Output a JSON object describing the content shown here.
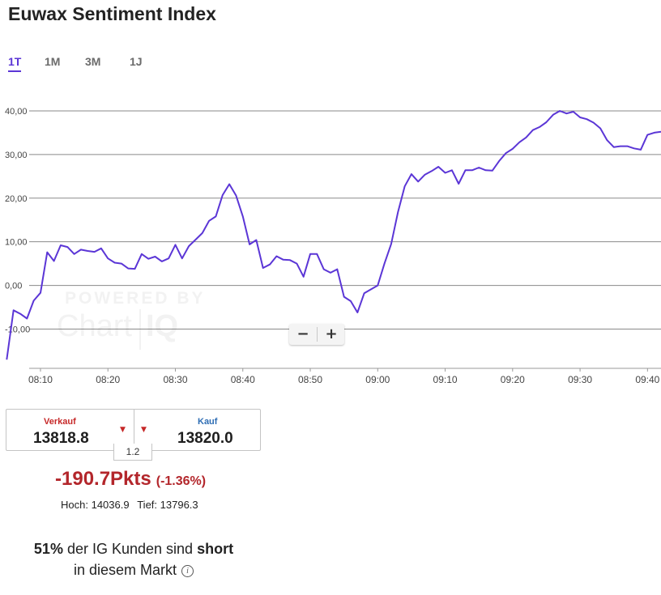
{
  "header": {
    "title": "Euwax Sentiment Index"
  },
  "tabs": [
    {
      "label": "1T",
      "active": true
    },
    {
      "label": "1M",
      "active": false
    },
    {
      "label": "3M",
      "active": false
    },
    {
      "label": "1J",
      "active": false
    }
  ],
  "zoom": {
    "minus_label": "−",
    "plus_label": "+"
  },
  "colors": {
    "line": "#5b36d6",
    "accent": "#5b36d6",
    "negative": "#b3262b",
    "sell": "#c62828",
    "buy": "#2e6db4"
  },
  "chart_data": {
    "type": "line",
    "title": "",
    "xlabel": "",
    "ylabel": "",
    "ylim": [
      -19,
      45
    ],
    "xlim": [
      "08:04",
      "09:42"
    ],
    "grid": true,
    "yticks": [
      40,
      30,
      20,
      10,
      0,
      -10
    ],
    "ytick_labels": [
      "40,00",
      "30,00",
      "20,00",
      "10,00",
      "0,00",
      "-10,00"
    ],
    "xticks": [
      "08:10",
      "08:20",
      "08:30",
      "08:40",
      "08:50",
      "09:00",
      "09:10",
      "09:20",
      "09:30",
      "09:40"
    ],
    "series": [
      {
        "x": [
          "08:05",
          "08:06",
          "08:07",
          "08:08",
          "08:09",
          "08:10",
          "08:11",
          "08:12",
          "08:13",
          "08:14",
          "08:15",
          "08:16",
          "08:17",
          "08:18",
          "08:19",
          "08:20",
          "08:21",
          "08:22",
          "08:23",
          "08:24",
          "08:25",
          "08:26",
          "08:27",
          "08:28",
          "08:29",
          "08:30",
          "08:31",
          "08:32",
          "08:33",
          "08:34",
          "08:35",
          "08:36",
          "08:37",
          "08:38",
          "08:39",
          "08:40",
          "08:41",
          "08:42",
          "08:43",
          "08:44",
          "08:45",
          "08:46",
          "08:47",
          "08:48",
          "08:49",
          "08:50",
          "08:51",
          "08:52",
          "08:53",
          "08:54",
          "08:55",
          "08:56",
          "08:57",
          "08:58",
          "08:59",
          "09:00",
          "09:01",
          "09:02",
          "09:03",
          "09:04",
          "09:05",
          "09:06",
          "09:07",
          "09:08",
          "09:09",
          "09:10",
          "09:11",
          "09:12",
          "09:13",
          "09:14",
          "09:15",
          "09:16",
          "09:17",
          "09:18",
          "09:19",
          "09:20",
          "09:21",
          "09:22",
          "09:23",
          "09:24",
          "09:25",
          "09:26",
          "09:27",
          "09:28",
          "09:29",
          "09:30",
          "09:31",
          "09:32",
          "09:33",
          "09:34",
          "09:35",
          "09:36",
          "09:37",
          "09:38",
          "09:39",
          "09:40",
          "09:41",
          "09:42"
        ],
        "y": [
          -17.0,
          -5.7,
          -6.5,
          -7.6,
          -3.5,
          -1.7,
          7.6,
          5.6,
          9.2,
          8.8,
          7.2,
          8.2,
          7.9,
          7.7,
          8.5,
          6.2,
          5.2,
          5.0,
          3.9,
          3.8,
          7.2,
          6.1,
          6.6,
          5.5,
          6.2,
          9.3,
          6.2,
          9.0,
          10.5,
          12.0,
          14.8,
          15.8,
          20.7,
          23.2,
          20.6,
          15.8,
          9.4,
          10.4,
          4.0,
          4.8,
          6.7,
          5.9,
          5.8,
          5.0,
          2.0,
          7.2,
          7.2,
          3.7,
          2.9,
          3.7,
          -2.6,
          -3.6,
          -6.2,
          -1.8,
          -0.9,
          0.0,
          5.0,
          9.5,
          16.8,
          22.7,
          25.5,
          23.8,
          25.4,
          26.2,
          27.2,
          25.8,
          26.4,
          23.3,
          26.4,
          26.4,
          27.0,
          26.4,
          26.3,
          28.5,
          30.3,
          31.3,
          32.8,
          33.9,
          35.6,
          36.3,
          37.4,
          39.1,
          40.0,
          39.4,
          39.8,
          38.5,
          38.1,
          37.3,
          36.0,
          33.3,
          31.7,
          31.9,
          31.9,
          31.4,
          31.1,
          34.5,
          35.0,
          35.2
        ]
      }
    ]
  },
  "quote": {
    "sell_label": "Verkauf",
    "sell_value": "13818.8",
    "buy_label": "Kauf",
    "buy_value": "13820.0",
    "spread": "1.2",
    "sell_arrow": "▼",
    "buy_arrow": "▼"
  },
  "change": {
    "points": "-190.7Pkts",
    "percent": "(-1.36%)"
  },
  "highlow": {
    "high_label": "Hoch:",
    "high_value": "14036.9",
    "low_label": "Tief:",
    "low_value": "13796.3"
  },
  "sentiment": {
    "percent": "51%",
    "text_before": " der IG Kunden sind ",
    "direction": "short",
    "line2": "in diesem Markt",
    "info_icon": "i"
  }
}
